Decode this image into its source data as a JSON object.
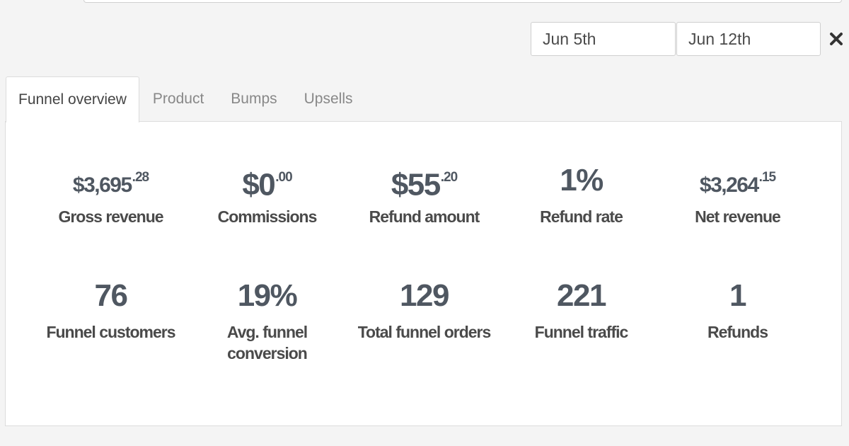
{
  "date_range": {
    "start": "Jun 5th",
    "end": "Jun 12th"
  },
  "tabs": [
    {
      "label": "Funnel overview",
      "active": true
    },
    {
      "label": "Product",
      "active": false
    },
    {
      "label": "Bumps",
      "active": false
    },
    {
      "label": "Upsells",
      "active": false
    }
  ],
  "stats": {
    "gross_revenue": {
      "main": "$3,695",
      "cents": ".28",
      "label": "Gross revenue"
    },
    "commissions": {
      "main": "$0",
      "cents": ".00",
      "label": "Commissions"
    },
    "refund_amount": {
      "main": "$55",
      "cents": ".20",
      "label": "Refund amount"
    },
    "refund_rate": {
      "main": "1%",
      "label": "Refund rate"
    },
    "net_revenue": {
      "main": "$3,264",
      "cents": ".15",
      "label": "Net revenue"
    },
    "funnel_customers": {
      "main": "76",
      "label": "Funnel customers"
    },
    "avg_funnel_conversion": {
      "main": "19%",
      "label_line1": "Avg. funnel",
      "label_line2": "conversion"
    },
    "total_funnel_orders": {
      "main": "129",
      "label": "Total funnel orders"
    },
    "funnel_traffic": {
      "main": "221",
      "label": "Funnel traffic"
    },
    "refunds": {
      "main": "1",
      "label": "Refunds"
    }
  },
  "colors": {
    "stat_text": "#4f5761",
    "background": "#f4f4f4",
    "panel": "#ffffff"
  },
  "icons": {
    "clear": "close-icon"
  }
}
